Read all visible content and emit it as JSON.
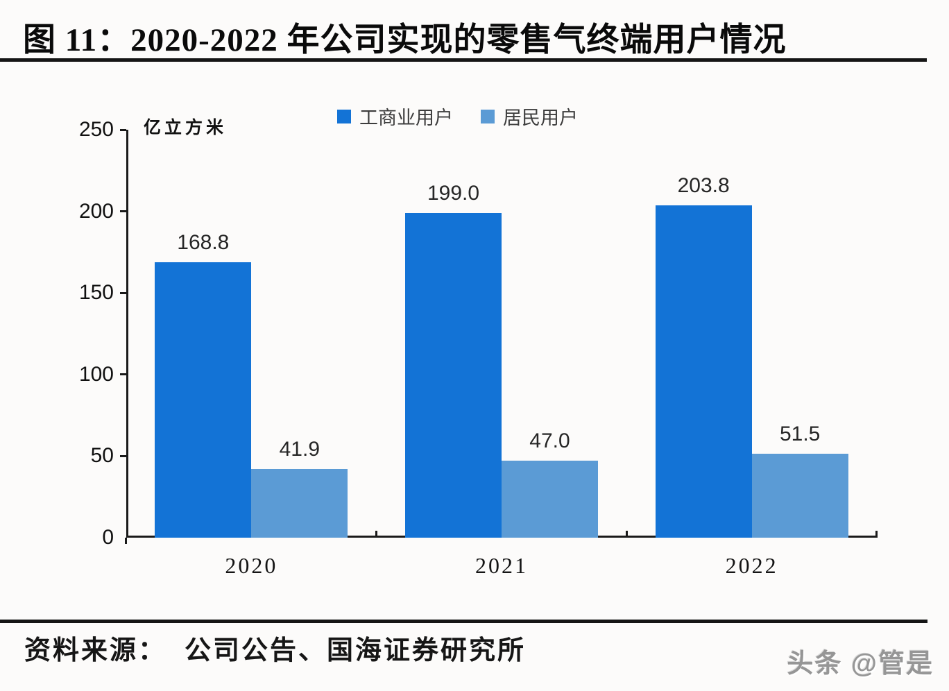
{
  "figure": {
    "title": "图 11：2020-2022 年公司实现的零售气终端用户情况",
    "source_prefix": "资料来源：",
    "source_text": "公司公告、国海证券研究所",
    "watermark": "头条 @管是"
  },
  "chart_data": {
    "type": "bar",
    "title": "2020-2022 年公司实现的零售气终端用户情况",
    "unit_label": "亿立方米",
    "categories": [
      "2020",
      "2021",
      "2022"
    ],
    "series": [
      {
        "name": "工商业用户",
        "color": "#1373d6",
        "values": [
          168.8,
          199.0,
          203.8
        ],
        "labels": [
          "168.8",
          "199.0",
          "203.8"
        ]
      },
      {
        "name": "居民用户",
        "color": "#5b9bd5",
        "values": [
          41.9,
          47.0,
          51.5
        ],
        "labels": [
          "41.9",
          "47.0",
          "51.5"
        ]
      }
    ],
    "ylabel": "亿立方米",
    "xlabel": "",
    "ylim": [
      0,
      250
    ],
    "yticks": [
      0,
      50,
      100,
      150,
      200,
      250
    ],
    "legend_position": "top",
    "grid": false,
    "value_labels_shown": true
  }
}
